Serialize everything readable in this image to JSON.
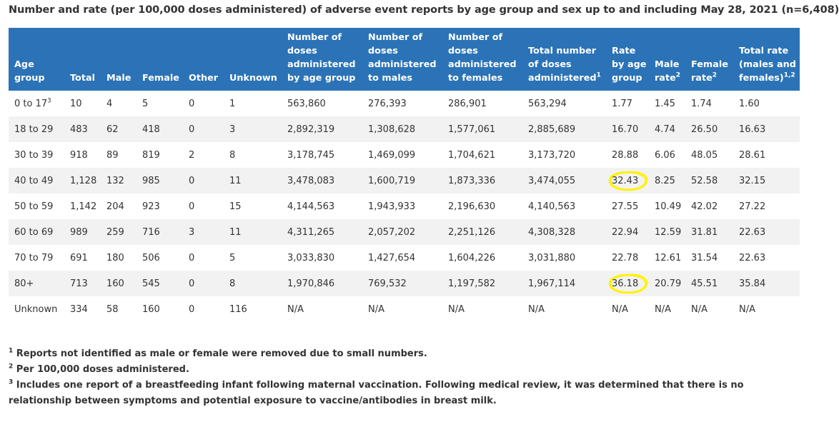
{
  "caption": "Number and rate (per 100,000 doses administered) of adverse event reports by age group and sex up to and including May 28, 2021 (n=6,408)",
  "headers": [
    {
      "text": "Age group",
      "sup": ""
    },
    {
      "text": "Total",
      "sup": ""
    },
    {
      "text": "Male",
      "sup": ""
    },
    {
      "text": "Female",
      "sup": ""
    },
    {
      "text": "Other",
      "sup": ""
    },
    {
      "text": "Unknown",
      "sup": ""
    },
    {
      "text": "Number of doses administered by age group",
      "sup": ""
    },
    {
      "text": "Number of doses administered to males",
      "sup": ""
    },
    {
      "text": "Number of doses administered to females",
      "sup": ""
    },
    {
      "text": "Total number of doses administered",
      "sup": "1"
    },
    {
      "text": "Rate by age group",
      "sup": ""
    },
    {
      "text": "Male rate",
      "sup": "2"
    },
    {
      "text": "Female rate",
      "sup": "2"
    },
    {
      "text": "Total rate (males and females)",
      "sup": "1,2"
    }
  ],
  "rows": [
    {
      "cells": [
        "0 to 17",
        "10",
        "4",
        "5",
        "0",
        "1",
        "563,860",
        "276,393",
        "286,901",
        "563,294",
        "1.77",
        "1.45",
        "1.74",
        "1.60"
      ],
      "age_sup": "3"
    },
    {
      "cells": [
        "18 to 29",
        "483",
        "62",
        "418",
        "0",
        "3",
        "2,892,319",
        "1,308,628",
        "1,577,061",
        "2,885,689",
        "16.70",
        "4.74",
        "26.50",
        "16.63"
      ],
      "age_sup": ""
    },
    {
      "cells": [
        "30 to 39",
        "918",
        "89",
        "819",
        "2",
        "8",
        "3,178,745",
        "1,469,099",
        "1,704,621",
        "3,173,720",
        "28.88",
        "6.06",
        "48.05",
        "28.61"
      ],
      "age_sup": ""
    },
    {
      "cells": [
        "40 to 49",
        "1,128",
        "132",
        "985",
        "0",
        "11",
        "3,478,083",
        "1,600,719",
        "1,873,336",
        "3,474,055",
        "32.43",
        "8.25",
        "52.58",
        "32.15"
      ],
      "age_sup": "",
      "highlight": true
    },
    {
      "cells": [
        "50 to 59",
        "1,142",
        "204",
        "923",
        "0",
        "15",
        "4,144,563",
        "1,943,933",
        "2,196,630",
        "4,140,563",
        "27.55",
        "10.49",
        "42.02",
        "27.22"
      ],
      "age_sup": ""
    },
    {
      "cells": [
        "60 to 69",
        "989",
        "259",
        "716",
        "3",
        "11",
        "4,311,265",
        "2,057,202",
        "2,251,126",
        "4,308,328",
        "22.94",
        "12.59",
        "31.81",
        "22.63"
      ],
      "age_sup": ""
    },
    {
      "cells": [
        "70 to 79",
        "691",
        "180",
        "506",
        "0",
        "5",
        "3,033,830",
        "1,427,654",
        "1,604,226",
        "3,031,880",
        "22.78",
        "12.61",
        "31.54",
        "22.63"
      ],
      "age_sup": ""
    },
    {
      "cells": [
        "80+",
        "713",
        "160",
        "545",
        "0",
        "8",
        "1,970,846",
        "769,532",
        "1,197,582",
        "1,967,114",
        "36.18",
        "20.79",
        "45.51",
        "35.84"
      ],
      "age_sup": "",
      "highlight": true
    },
    {
      "cells": [
        "Unknown",
        "334",
        "58",
        "160",
        "0",
        "116",
        "N/A",
        "N/A",
        "N/A",
        "N/A",
        "N/A",
        "N/A",
        "N/A",
        "N/A"
      ],
      "age_sup": ""
    }
  ],
  "highlight_color": "#fff200",
  "header_bg": "#2b73b6",
  "footnotes": [
    {
      "mark": "1",
      "text": "Reports not identified as male or female were removed due to small numbers."
    },
    {
      "mark": "2",
      "text": "Per 100,000 doses administered."
    },
    {
      "mark": "3",
      "text": "Includes one report of a breastfeeding infant following maternal vaccination. Following medical review, it was determined that there is no relationship between symptoms and potential exposure to vaccine/antibodies in breast milk."
    }
  ]
}
